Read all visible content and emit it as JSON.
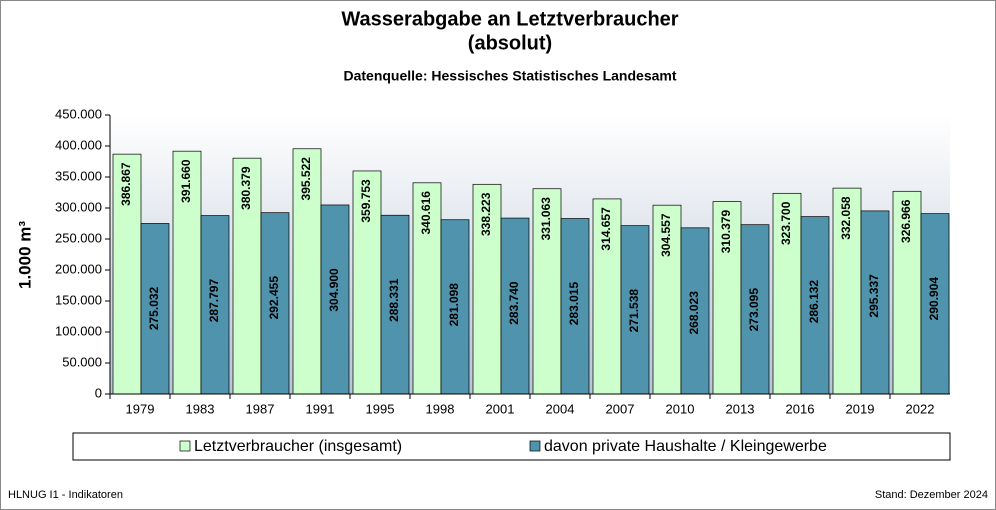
{
  "chart_data": {
    "type": "bar",
    "title": "Wasserabgabe an Letztverbraucher",
    "title_line2": "(absolut)",
    "subtitle": "Datenquelle: Hessisches Statistisches Landesamt",
    "y_label": "1.000 m³",
    "footer_left": "HLNUG I1 - Indikatoren",
    "footer_right": "Stand: Dezember 2024",
    "categories": [
      "1979",
      "1983",
      "1987",
      "1991",
      "1995",
      "1998",
      "2001",
      "2004",
      "2007",
      "2010",
      "2013",
      "2016",
      "2019",
      "2022"
    ],
    "series": [
      {
        "name": "Letztverbraucher (insgesamt)",
        "color": "#ccffcc",
        "values": [
          386867,
          391660,
          380379,
          395522,
          359753,
          340616,
          338223,
          331063,
          314657,
          304557,
          310379,
          323700,
          332058,
          326966
        ],
        "value_labels": [
          "386.867",
          "391.660",
          "380.379",
          "395.522",
          "359.753",
          "340.616",
          "338.223",
          "331.063",
          "314.657",
          "304.557",
          "310.379",
          "323.700",
          "332.058",
          "326.966"
        ]
      },
      {
        "name": "davon private Haushalte / Kleingewerbe",
        "color": "#4f94ac",
        "values": [
          275032,
          287797,
          292455,
          304900,
          288331,
          281098,
          283740,
          283015,
          271538,
          268023,
          273095,
          286132,
          295337,
          290904
        ],
        "value_labels": [
          "275.032",
          "287.797",
          "292.455",
          "304.900",
          "288.331",
          "281.098",
          "283.740",
          "283.015",
          "271.538",
          "268.023",
          "273.095",
          "286.132",
          "295.337",
          "290.904"
        ]
      }
    ],
    "ylim": [
      0,
      450000
    ],
    "yticks": [
      0,
      {
        "value": 50000,
        "label": "50.000"
      },
      {
        "value": 100000,
        "label": "100.000"
      },
      {
        "value": 150000,
        "label": "150.000"
      },
      {
        "value": 200000,
        "label": "200.000"
      },
      {
        "value": 250000,
        "label": "250.000"
      },
      {
        "value": 300000,
        "label": "300.000"
      },
      {
        "value": 350000,
        "label": "350.000"
      },
      {
        "value": 400000,
        "label": "400.000"
      },
      {
        "value": 450000,
        "label": "450.000"
      }
    ],
    "legend": "bottom"
  }
}
